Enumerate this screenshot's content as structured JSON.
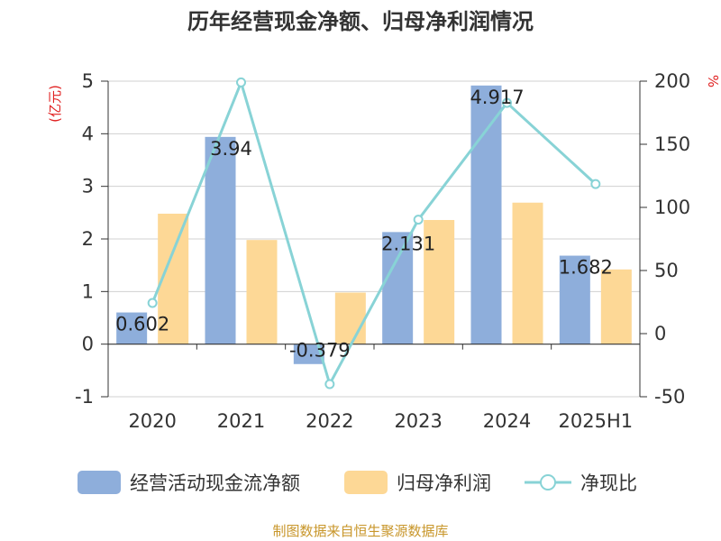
{
  "chart_data": {
    "type": "bar",
    "title": "历年经营现金净额、归母净利润情况",
    "categories": [
      "2020",
      "2021",
      "2022",
      "2023",
      "2024",
      "2025H1"
    ],
    "series": [
      {
        "name": "经营活动现金流净额",
        "type": "bar",
        "axis": "left",
        "color": "#8eaedb",
        "values": [
          0.602,
          3.94,
          -0.379,
          2.131,
          4.917,
          1.682
        ]
      },
      {
        "name": "归母净利润",
        "type": "bar",
        "axis": "left",
        "color": "#fdd896",
        "values": [
          2.48,
          1.98,
          0.98,
          2.36,
          2.69,
          1.42
        ]
      },
      {
        "name": "净现比",
        "type": "line",
        "axis": "right",
        "color": "#88d3d6",
        "values": [
          24.3,
          199,
          -40,
          90.3,
          182.8,
          118.5
        ]
      }
    ],
    "data_labels": [
      "0.602",
      "3.94",
      "-0.379",
      "2.131",
      "4.917",
      "1.682"
    ],
    "y_left": {
      "unit": "(亿元)",
      "ticks": [
        "5",
        "4",
        "3",
        "2",
        "1",
        "0",
        "-1"
      ],
      "ylim": [
        -1,
        5
      ]
    },
    "y_right": {
      "unit": "%",
      "ticks": [
        "200",
        "150",
        "100",
        "50",
        "0",
        "-50"
      ],
      "ylim": [
        -50,
        200
      ]
    },
    "grid": true,
    "legend_position": "bottom",
    "source": "制图数据来自恒生聚源数据库"
  }
}
